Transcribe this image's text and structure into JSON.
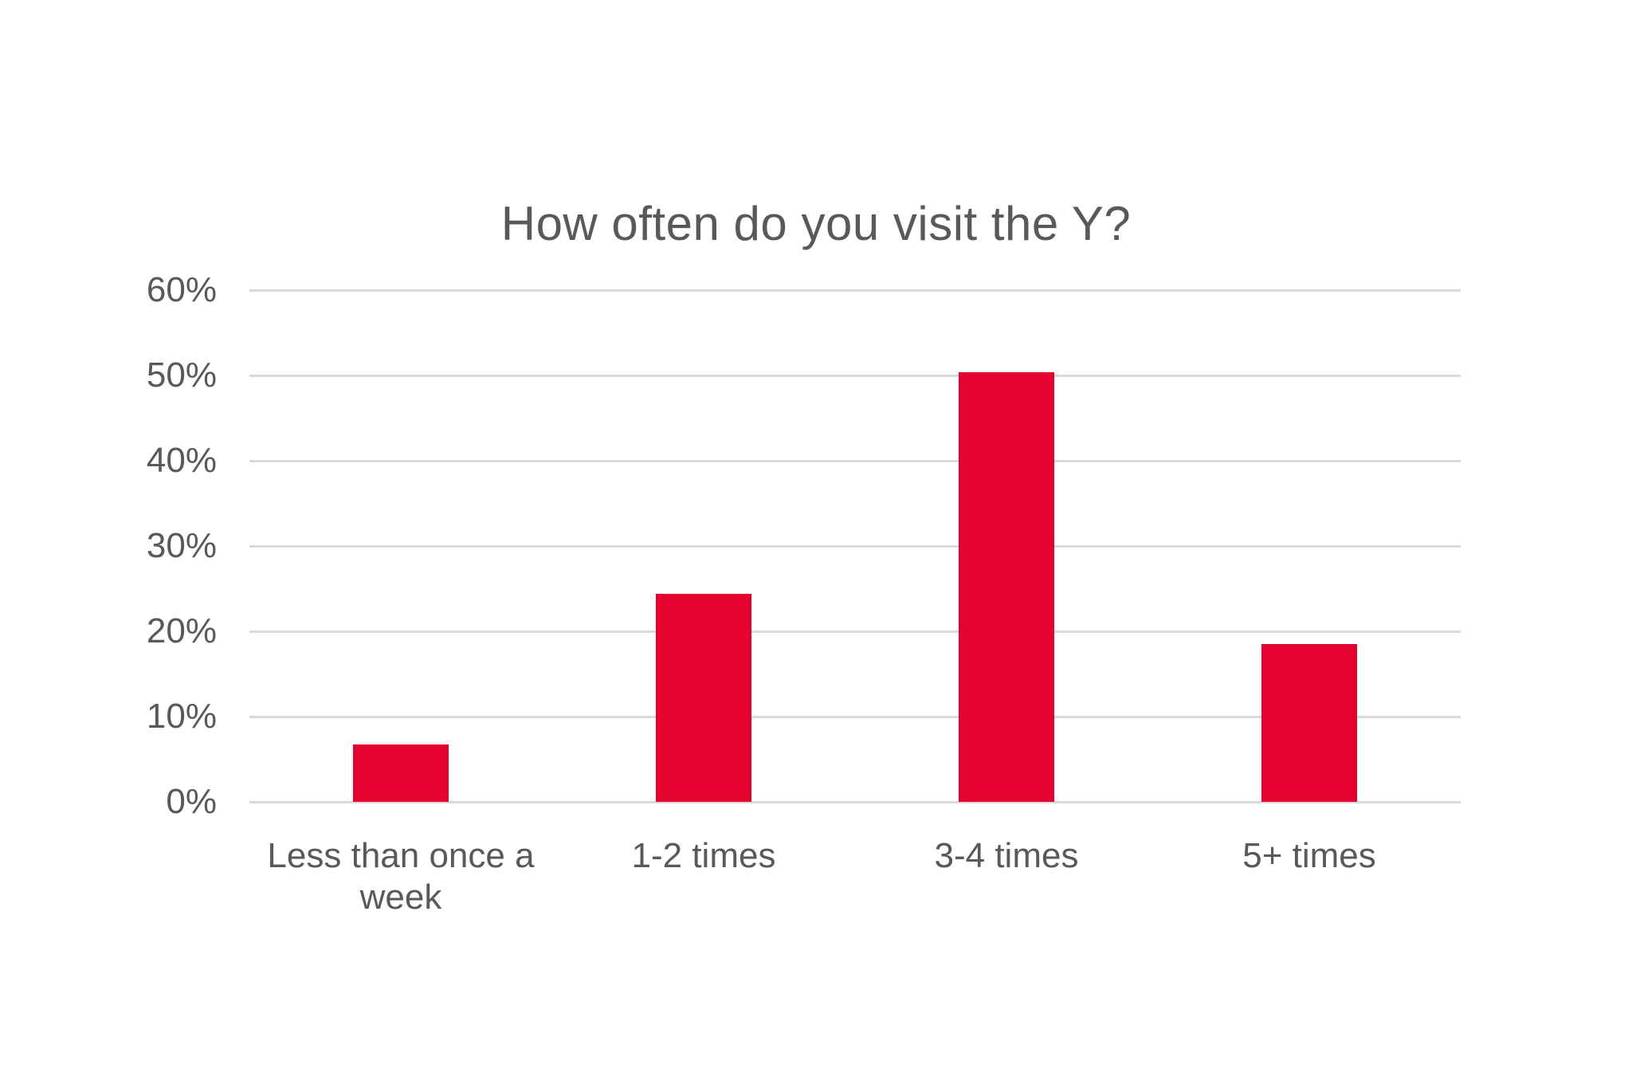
{
  "chart_data": {
    "type": "bar",
    "title": "How often do you visit the Y?",
    "categories": [
      "Less than once a week",
      "1-2 times",
      "3-4 times",
      "5+ times"
    ],
    "values": [
      6.7,
      24.4,
      50.4,
      18.5
    ],
    "value_unit": "%",
    "xlabel": "",
    "ylabel": "",
    "ylim": [
      0,
      60
    ],
    "ytick_step": 10,
    "ytick_labels": [
      "0%",
      "10%",
      "20%",
      "30%",
      "40%",
      "50%",
      "60%"
    ],
    "grid": true,
    "legend": "none",
    "colors": {
      "bar": "#E4032E",
      "grid": "#D9D9D9",
      "text": "#58595B",
      "background": "#FFFFFF"
    }
  }
}
